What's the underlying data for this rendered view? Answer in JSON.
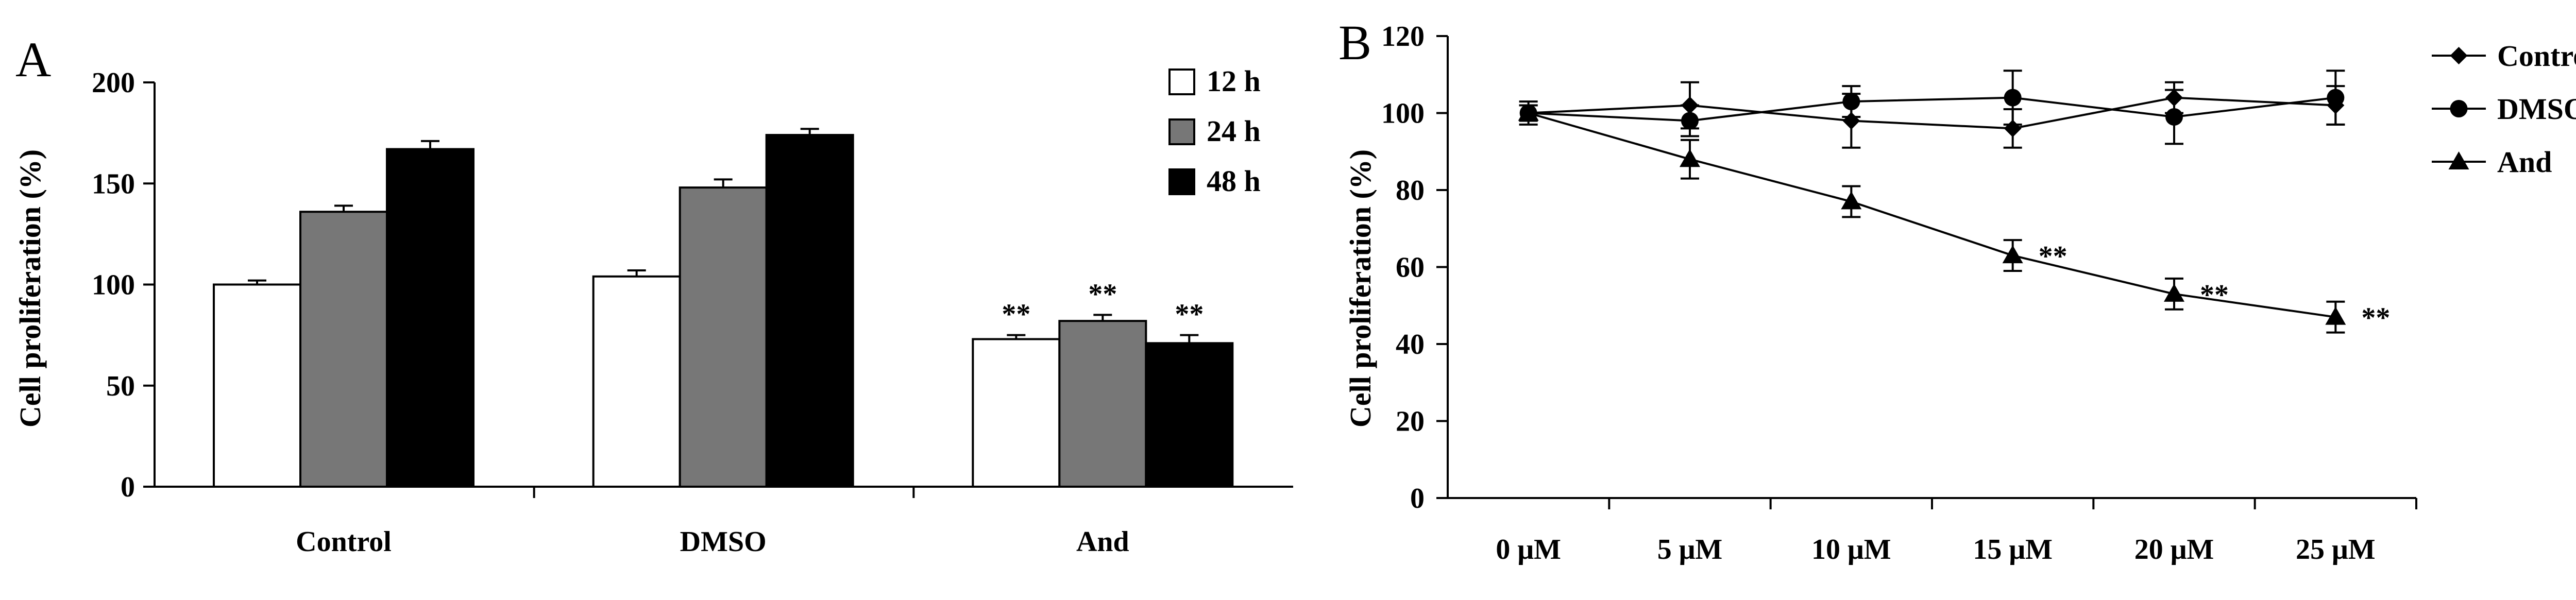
{
  "panels": [
    {
      "letter": "A",
      "chart_data": {
        "type": "bar",
        "title": "",
        "xlabel": "",
        "ylabel": "Cell proliferation (%)",
        "ylim": [
          0,
          200
        ],
        "yticks": [
          "0",
          "50",
          "100",
          "150",
          "200"
        ],
        "categories": [
          "Control",
          "DMSO",
          "And"
        ],
        "series": [
          {
            "name": "12 h",
            "color": "#ffffff",
            "values": [
              100,
              104,
              73
            ],
            "errors": [
              2,
              3,
              2
            ]
          },
          {
            "name": "24 h",
            "color": "#777777",
            "values": [
              136,
              148,
              82
            ],
            "errors": [
              3,
              4,
              3
            ]
          },
          {
            "name": "48 h",
            "color": "#000000",
            "values": [
              167,
              174,
              71
            ],
            "errors": [
              4,
              3,
              4
            ]
          }
        ],
        "annotations": [
          {
            "category": "And",
            "series": "12 h",
            "text": "**"
          },
          {
            "category": "And",
            "series": "24 h",
            "text": "**"
          },
          {
            "category": "And",
            "series": "48 h",
            "text": "**"
          }
        ],
        "legend": "top-right"
      }
    },
    {
      "letter": "B",
      "chart_data": {
        "type": "line",
        "title": "",
        "xlabel": "",
        "ylabel": "Cell proliferation (%)",
        "ylim": [
          0,
          120
        ],
        "yticks": [
          "0",
          "20",
          "40",
          "60",
          "80",
          "100",
          "120"
        ],
        "categories": [
          "0 μM",
          "5 μM",
          "10 μM",
          "15 μM",
          "20 μM",
          "25 μM"
        ],
        "series": [
          {
            "name": "Control",
            "marker": "diamond",
            "values": [
              100,
              102,
              98,
              96,
              104,
              102
            ],
            "errors": [
              2,
              6,
              7,
              5,
              4,
              5
            ]
          },
          {
            "name": "DMSO",
            "marker": "circle",
            "values": [
              100,
              98,
              103,
              104,
              99,
              104
            ],
            "errors": [
              3,
              4,
              4,
              7,
              7,
              7
            ]
          },
          {
            "name": "And",
            "marker": "triangle",
            "values": [
              100,
              88,
              77,
              63,
              53,
              47
            ],
            "errors": [
              2,
              5,
              4,
              4,
              4,
              4
            ]
          }
        ],
        "annotations": [
          {
            "series": "And",
            "index": 3,
            "text": "**"
          },
          {
            "series": "And",
            "index": 4,
            "text": "**"
          },
          {
            "series": "And",
            "index": 5,
            "text": "**"
          }
        ],
        "legend": "top-right"
      }
    }
  ]
}
